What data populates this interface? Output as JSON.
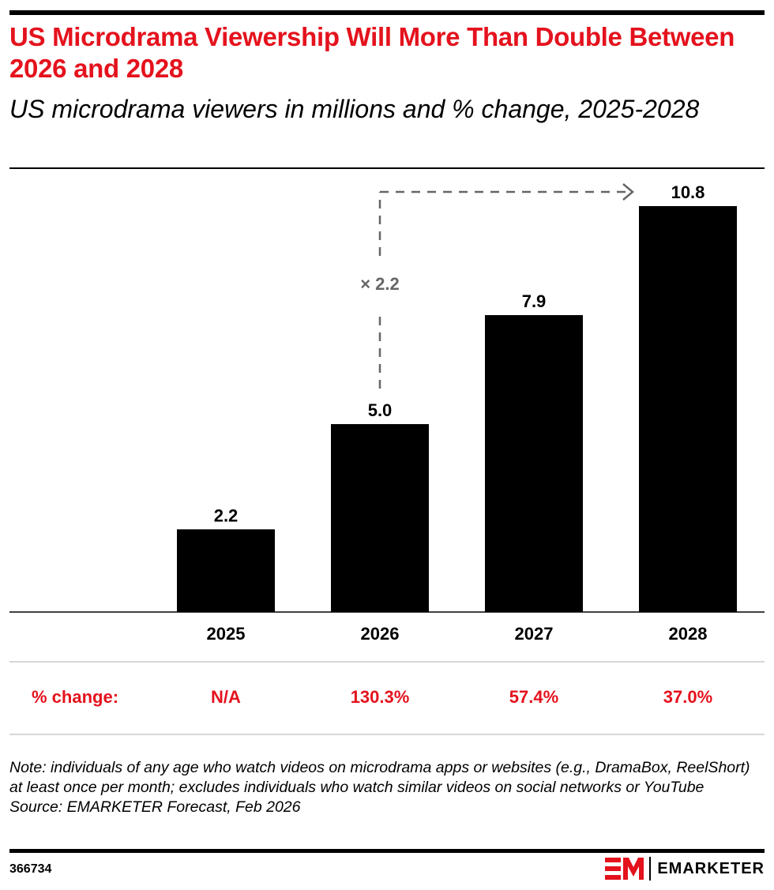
{
  "header": {
    "title": "US Microdrama Viewership Will More Than Double Between 2026 and 2028",
    "subtitle": "US microdrama viewers in millions and % change, 2025-2028"
  },
  "chart_data": {
    "type": "bar",
    "title": "US Microdrama Viewership Will More Than Double Between 2026 and 2028",
    "subtitle": "US microdrama viewers in millions and % change, 2025-2028",
    "categories": [
      "2025",
      "2026",
      "2027",
      "2028"
    ],
    "values": [
      2.2,
      5.0,
      7.9,
      10.8
    ],
    "value_labels": [
      "2.2",
      "5.0",
      "7.9",
      "10.8"
    ],
    "ylim": [
      0,
      10.8
    ],
    "grid": false,
    "bar_color": "#000000",
    "annotation": {
      "text": "× 2.2",
      "from": "2026",
      "to": "2028",
      "style": "dashed-arrow",
      "color": "#666666"
    }
  },
  "pct_change": {
    "label": "% change:",
    "values": [
      "N/A",
      "130.3%",
      "57.4%",
      "37.0%"
    ],
    "color": "#e4121d"
  },
  "footer": {
    "note": "Note: individuals of any age who watch videos on microdrama apps or websites (e.g., DramaBox, ReelShort) at least once per month; excludes individuals who watch similar videos on social networks or YouTube",
    "source": "Source: EMARKETER Forecast, Feb 2026",
    "chart_id": "366734",
    "brand": "EMARKETER",
    "brand_color": "#e4121d"
  }
}
